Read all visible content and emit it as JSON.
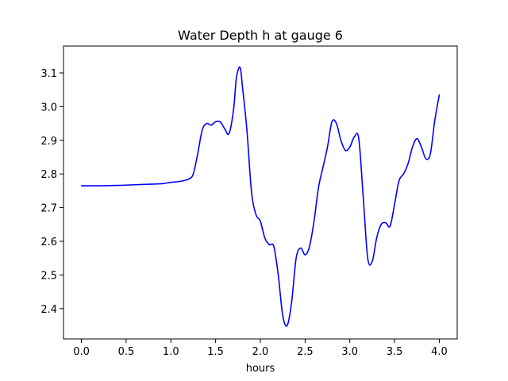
{
  "chart_data": {
    "type": "line",
    "title": "Water Depth h at gauge 6",
    "xlabel": "hours",
    "ylabel": "",
    "xlim": [
      -0.2,
      4.2
    ],
    "ylim": [
      2.31,
      3.18
    ],
    "xticks": [
      0.0,
      0.5,
      1.0,
      1.5,
      2.0,
      2.5,
      3.0,
      3.5,
      4.0
    ],
    "xtick_labels": [
      "0.0",
      "0.5",
      "1.0",
      "1.5",
      "2.0",
      "2.5",
      "3.0",
      "3.5",
      "4.0"
    ],
    "yticks": [
      2.4,
      2.5,
      2.6,
      2.7,
      2.8,
      2.9,
      3.0,
      3.1
    ],
    "ytick_labels": [
      "2.4",
      "2.5",
      "2.6",
      "2.7",
      "2.8",
      "2.9",
      "3.0",
      "3.1"
    ],
    "grid": false,
    "legend": "none",
    "series": [
      {
        "color": "#0000ff",
        "x": [
          0.0,
          0.2,
          0.4,
          0.6,
          0.8,
          0.9,
          1.0,
          1.1,
          1.2,
          1.25,
          1.3,
          1.35,
          1.4,
          1.45,
          1.5,
          1.55,
          1.6,
          1.65,
          1.7,
          1.73,
          1.76,
          1.78,
          1.8,
          1.85,
          1.9,
          1.95,
          2.0,
          2.05,
          2.1,
          2.15,
          2.2,
          2.25,
          2.3,
          2.35,
          2.4,
          2.45,
          2.5,
          2.55,
          2.6,
          2.65,
          2.7,
          2.75,
          2.8,
          2.85,
          2.9,
          2.95,
          3.0,
          3.05,
          3.1,
          3.15,
          3.2,
          3.25,
          3.3,
          3.35,
          3.4,
          3.45,
          3.5,
          3.55,
          3.6,
          3.65,
          3.7,
          3.75,
          3.8,
          3.85,
          3.9,
          3.95,
          4.0
        ],
        "y": [
          2.765,
          2.765,
          2.766,
          2.768,
          2.77,
          2.771,
          2.775,
          2.778,
          2.785,
          2.8,
          2.86,
          2.93,
          2.95,
          2.945,
          2.955,
          2.955,
          2.935,
          2.92,
          2.99,
          3.08,
          3.115,
          3.11,
          3.06,
          2.93,
          2.75,
          2.68,
          2.66,
          2.61,
          2.59,
          2.585,
          2.5,
          2.38,
          2.35,
          2.42,
          2.55,
          2.58,
          2.56,
          2.585,
          2.66,
          2.76,
          2.82,
          2.88,
          2.955,
          2.95,
          2.9,
          2.87,
          2.88,
          2.91,
          2.905,
          2.73,
          2.55,
          2.54,
          2.61,
          2.65,
          2.655,
          2.645,
          2.71,
          2.78,
          2.8,
          2.83,
          2.88,
          2.905,
          2.88,
          2.845,
          2.86,
          2.96,
          3.035
        ]
      }
    ]
  }
}
